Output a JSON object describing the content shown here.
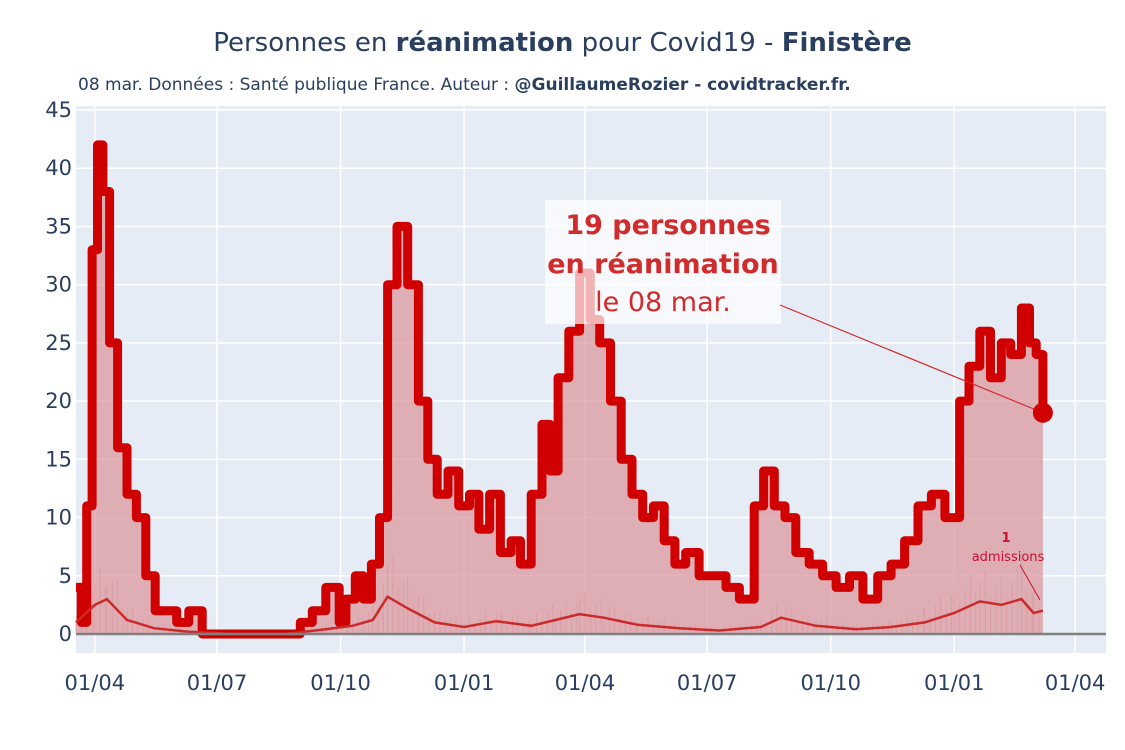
{
  "title": {
    "prefix": "Personnes en ",
    "bold1": "réanimation",
    "middle": " pour Covid19 - ",
    "bold2": "Finistère"
  },
  "subtitle": {
    "text": "08 mar. Données : Santé publique France. Auteur : ",
    "bold": "@GuillaumeRozier - covidtracker.fr."
  },
  "annotation": {
    "line1": "19 personnes",
    "line2": "en réanimation",
    "line3": "le 08 mar."
  },
  "admissions_annotation": {
    "value": "1",
    "label": "admissions"
  },
  "colors": {
    "plot_bg": "#e5ecf6",
    "main_line": "#d00000",
    "area_fill": "#dc9a9f",
    "thin_line": "#cc2a2a",
    "text": "#2a3f5f",
    "zero_line": "#808080"
  },
  "chart_data": {
    "type": "line",
    "xlabel": "",
    "ylabel": "",
    "ylim": [
      0,
      45
    ],
    "yticks": [
      0,
      5,
      10,
      15,
      20,
      25,
      30,
      35,
      40,
      45
    ],
    "xtick_labels": [
      "01/04",
      "01/07",
      "01/10",
      "01/01",
      "01/04",
      "01/07",
      "01/10",
      "01/01",
      "01/04"
    ],
    "xtick_dates": [
      "2020-04-01",
      "2020-07-01",
      "2020-10-01",
      "2021-01-01",
      "2021-04-01",
      "2021-07-01",
      "2021-10-01",
      "2022-01-01",
      "2022-04-01"
    ],
    "xlim": [
      "2020-03-18",
      "2022-04-24"
    ],
    "grid": true,
    "series": [
      {
        "values_description": "reanimation",
        "x": [
          "2020-03-18",
          "2020-03-22",
          "2020-03-26",
          "2020-03-30",
          "2020-04-03",
          "2020-04-07",
          "2020-04-12",
          "2020-04-18",
          "2020-04-25",
          "2020-05-02",
          "2020-05-09",
          "2020-05-16",
          "2020-05-23",
          "2020-06-01",
          "2020-06-10",
          "2020-06-20",
          "2020-06-30",
          "2020-07-15",
          "2020-08-01",
          "2020-08-20",
          "2020-09-01",
          "2020-09-10",
          "2020-09-20",
          "2020-09-30",
          "2020-10-05",
          "2020-10-12",
          "2020-10-18",
          "2020-10-24",
          "2020-10-30",
          "2020-11-05",
          "2020-11-12",
          "2020-11-20",
          "2020-11-28",
          "2020-12-05",
          "2020-12-12",
          "2020-12-20",
          "2020-12-28",
          "2021-01-05",
          "2021-01-12",
          "2021-01-20",
          "2021-01-28",
          "2021-02-05",
          "2021-02-12",
          "2021-02-20",
          "2021-02-28",
          "2021-03-06",
          "2021-03-12",
          "2021-03-20",
          "2021-03-28",
          "2021-04-05",
          "2021-04-12",
          "2021-04-20",
          "2021-04-28",
          "2021-05-06",
          "2021-05-14",
          "2021-05-22",
          "2021-05-30",
          "2021-06-07",
          "2021-06-15",
          "2021-06-25",
          "2021-07-05",
          "2021-07-15",
          "2021-07-25",
          "2021-08-05",
          "2021-08-12",
          "2021-08-20",
          "2021-08-28",
          "2021-09-05",
          "2021-09-15",
          "2021-09-25",
          "2021-10-05",
          "2021-10-15",
          "2021-10-25",
          "2021-11-05",
          "2021-11-15",
          "2021-11-25",
          "2021-12-05",
          "2021-12-15",
          "2021-12-25",
          "2022-01-05",
          "2022-01-12",
          "2022-01-20",
          "2022-01-28",
          "2022-02-05",
          "2022-02-12",
          "2022-02-20",
          "2022-02-26",
          "2022-03-03",
          "2022-03-08"
        ],
        "values": [
          4,
          1,
          11,
          33,
          42,
          38,
          25,
          16,
          12,
          10,
          5,
          2,
          2,
          1,
          2,
          0,
          0,
          0,
          0,
          0,
          1,
          2,
          4,
          1,
          3,
          5,
          3,
          6,
          10,
          30,
          35,
          30,
          20,
          15,
          12,
          14,
          11,
          12,
          9,
          12,
          7,
          8,
          6,
          12,
          18,
          14,
          22,
          26,
          31,
          27,
          25,
          20,
          15,
          12,
          10,
          11,
          8,
          6,
          7,
          5,
          5,
          4,
          3,
          11,
          14,
          11,
          10,
          7,
          6,
          5,
          4,
          5,
          3,
          5,
          6,
          8,
          11,
          12,
          10,
          20,
          23,
          26,
          22,
          25,
          24,
          28,
          25,
          24,
          19
        ]
      },
      {
        "values_description": "admissions",
        "x": [
          "2020-03-18",
          "2020-04-01",
          "2020-04-10",
          "2020-04-25",
          "2020-05-15",
          "2020-06-10",
          "2020-07-15",
          "2020-08-20",
          "2020-09-20",
          "2020-10-10",
          "2020-10-25",
          "2020-11-05",
          "2020-11-20",
          "2020-12-10",
          "2021-01-01",
          "2021-01-25",
          "2021-02-20",
          "2021-03-10",
          "2021-03-28",
          "2021-04-15",
          "2021-05-10",
          "2021-06-10",
          "2021-07-10",
          "2021-08-10",
          "2021-08-25",
          "2021-09-20",
          "2021-10-20",
          "2021-11-15",
          "2021-12-10",
          "2022-01-01",
          "2022-01-20",
          "2022-02-05",
          "2022-02-20",
          "2022-03-01",
          "2022-03-08"
        ],
        "values": [
          1.0,
          2.5,
          3.0,
          1.2,
          0.5,
          0.2,
          0.0,
          0.0,
          0.4,
          0.7,
          1.2,
          3.2,
          2.2,
          1.0,
          0.6,
          1.1,
          0.7,
          1.2,
          1.7,
          1.4,
          0.8,
          0.5,
          0.3,
          0.6,
          1.4,
          0.7,
          0.4,
          0.6,
          1.0,
          1.8,
          2.8,
          2.5,
          3.0,
          1.8,
          2.0
        ]
      }
    ]
  }
}
